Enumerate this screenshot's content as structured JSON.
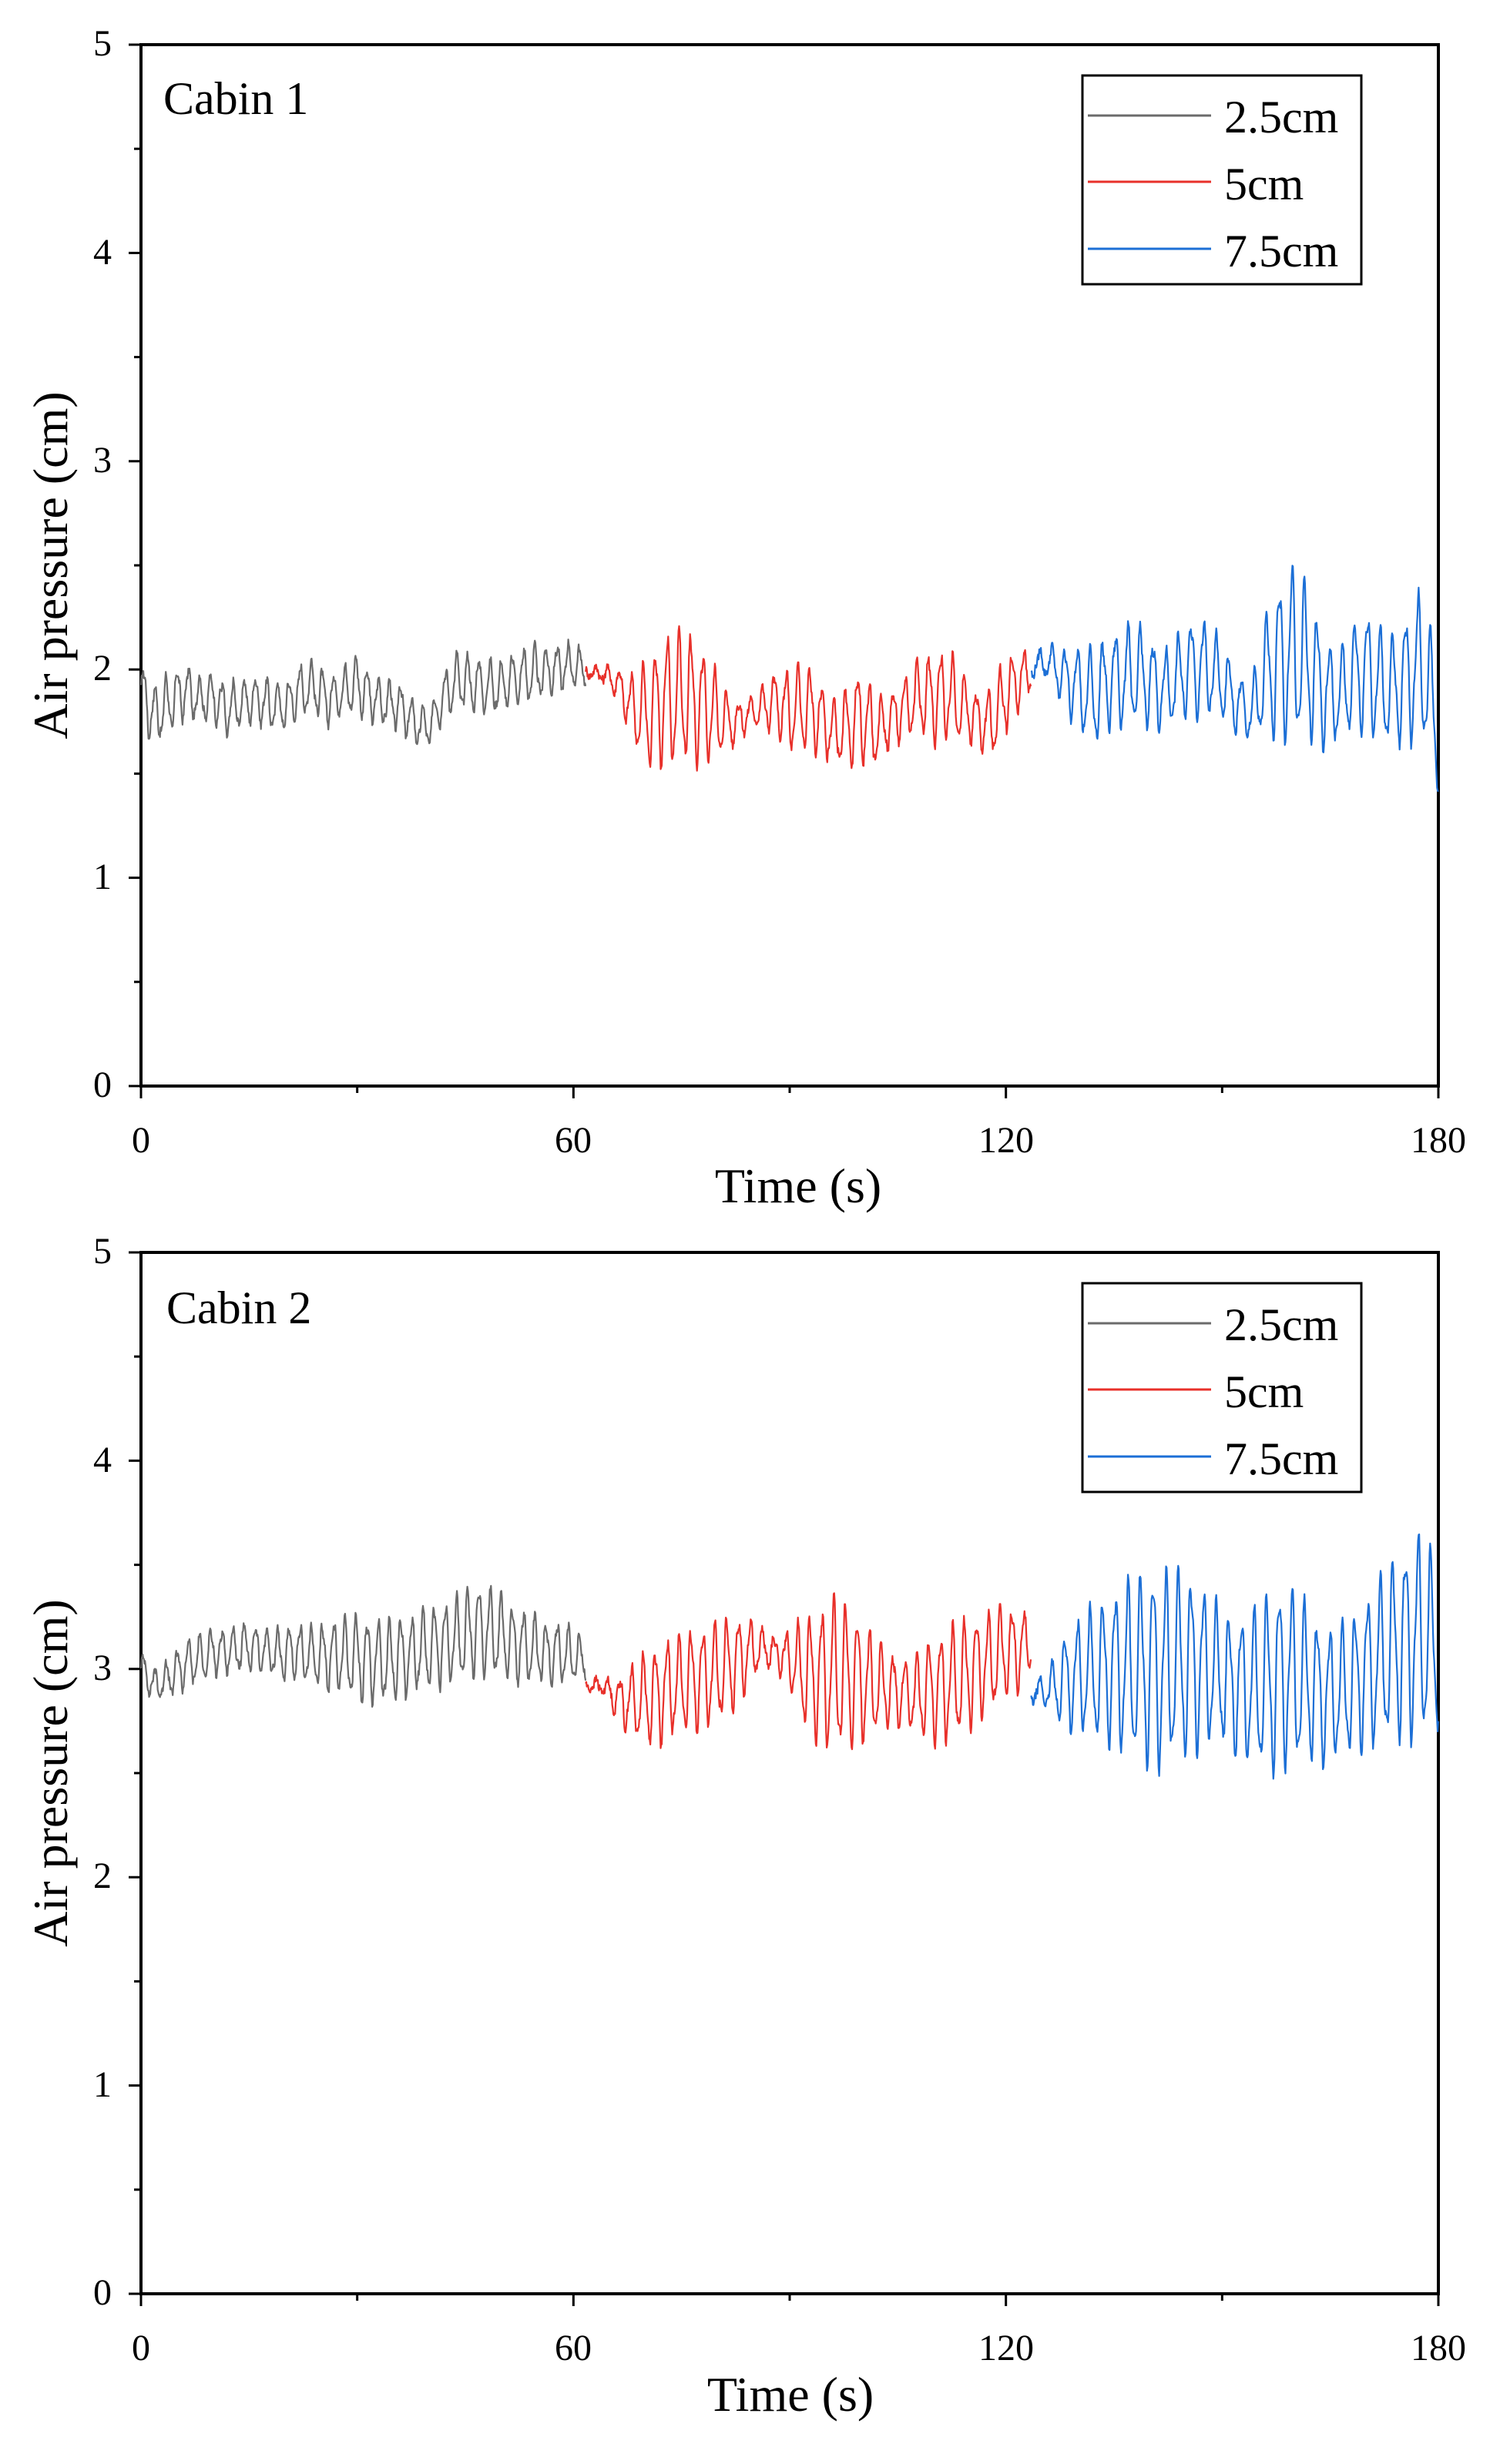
{
  "chart_data": [
    {
      "type": "line",
      "panel_label": "Cabin 1",
      "xlabel": "Time (s)",
      "ylabel": "Air pressure (cm)",
      "xlim": [
        0,
        180
      ],
      "ylim": [
        0,
        5
      ],
      "xticks": [
        0,
        60,
        120,
        180
      ],
      "yticks": [
        0,
        1,
        2,
        3,
        4,
        5
      ],
      "legend_position": "top-right",
      "series": [
        {
          "name": "2.5cm",
          "color": "#6b6b6b",
          "t_start": 0,
          "t_end": 61.7,
          "x": [
            0,
            2,
            4,
            6,
            8,
            10,
            12,
            14,
            16,
            18,
            20,
            22,
            24,
            26,
            28,
            30,
            32,
            34,
            36,
            38,
            40,
            42,
            44,
            46,
            48,
            50,
            52,
            54,
            56,
            58,
            60,
            61.7
          ],
          "mean": [
            1.88,
            1.78,
            1.84,
            1.9,
            1.86,
            1.87,
            1.8,
            1.84,
            1.86,
            1.83,
            1.82,
            1.9,
            1.92,
            1.85,
            1.9,
            1.93,
            1.86,
            1.84,
            1.82,
            1.74,
            1.72,
            1.88,
            1.95,
            1.93,
            1.92,
            1.92,
            1.96,
            1.98,
            1.99,
            2.01,
            2.02,
            2.0
          ],
          "amp": [
            0.18,
            0.15,
            0.16,
            0.14,
            0.12,
            0.12,
            0.14,
            0.12,
            0.12,
            0.13,
            0.12,
            0.13,
            0.14,
            0.12,
            0.12,
            0.16,
            0.12,
            0.12,
            0.13,
            0.11,
            0.1,
            0.12,
            0.15,
            0.15,
            0.14,
            0.13,
            0.14,
            0.15,
            0.12,
            0.12,
            0.12,
            0.08
          ]
        },
        {
          "name": "5cm",
          "color": "#e8302a",
          "t_start": 61.7,
          "t_end": 123.5,
          "x": [
            61.7,
            64,
            66,
            68,
            70,
            72,
            74,
            76,
            78,
            80,
            82,
            84,
            86,
            88,
            90,
            92,
            94,
            96,
            98,
            100,
            102,
            104,
            106,
            108,
            110,
            112,
            114,
            116,
            118,
            120,
            122,
            123.5
          ],
          "mean": [
            1.99,
            1.98,
            1.94,
            1.82,
            1.78,
            1.84,
            1.86,
            1.87,
            1.82,
            1.78,
            1.74,
            1.78,
            1.82,
            1.84,
            1.8,
            1.82,
            1.78,
            1.7,
            1.72,
            1.78,
            1.7,
            1.76,
            1.82,
            1.88,
            1.86,
            1.88,
            1.82,
            1.76,
            1.74,
            1.88,
            1.96,
            1.98
          ],
          "amp": [
            0.02,
            0.04,
            0.08,
            0.16,
            0.28,
            0.32,
            0.36,
            0.34,
            0.3,
            0.22,
            0.12,
            0.08,
            0.1,
            0.16,
            0.22,
            0.24,
            0.2,
            0.16,
            0.2,
            0.26,
            0.18,
            0.14,
            0.16,
            0.2,
            0.24,
            0.24,
            0.18,
            0.14,
            0.18,
            0.2,
            0.16,
            0.08
          ]
        },
        {
          "name": "7.5cm",
          "color": "#1c6fd6",
          "t_start": 123.5,
          "t_end": 180,
          "x": [
            123.5,
            126,
            128,
            130,
            132,
            134,
            136,
            138,
            140,
            142,
            144,
            146,
            148,
            150,
            152,
            154,
            156,
            158,
            160,
            162,
            164,
            166,
            168,
            170,
            172,
            174,
            176,
            178,
            180
          ],
          "mean": [
            2.02,
            2.04,
            1.96,
            1.92,
            1.86,
            1.94,
            1.96,
            1.98,
            1.94,
            1.9,
            1.96,
            2.02,
            2.0,
            1.94,
            1.84,
            1.78,
            1.98,
            2.04,
            2.08,
            2.02,
            1.9,
            1.86,
            1.96,
            2.0,
            1.92,
            1.9,
            1.98,
            2.02,
            1.68
          ],
          "amp": [
            0.06,
            0.08,
            0.16,
            0.22,
            0.26,
            0.24,
            0.26,
            0.28,
            0.24,
            0.2,
            0.22,
            0.26,
            0.24,
            0.2,
            0.16,
            0.14,
            0.3,
            0.42,
            0.46,
            0.4,
            0.3,
            0.22,
            0.28,
            0.32,
            0.3,
            0.28,
            0.36,
            0.42,
            0.3
          ]
        }
      ]
    },
    {
      "type": "line",
      "panel_label": "Cabin 2",
      "xlabel": "Time (s)",
      "ylabel": "Air pressure (cm)",
      "xlim": [
        0,
        180
      ],
      "ylim": [
        0,
        5
      ],
      "xticks": [
        0,
        60,
        120,
        180
      ],
      "yticks": [
        0,
        1,
        2,
        3,
        4,
        5
      ],
      "legend_position": "top-right",
      "series": [
        {
          "name": "2.5cm",
          "color": "#6b6b6b",
          "t_start": 0,
          "t_end": 61.7,
          "x": [
            0,
            2,
            4,
            6,
            8,
            10,
            12,
            14,
            16,
            18,
            20,
            22,
            24,
            26,
            28,
            30,
            32,
            34,
            36,
            38,
            40,
            42,
            44,
            46,
            48,
            50,
            52,
            54,
            56,
            58,
            60,
            61.7
          ],
          "mean": [
            3.0,
            2.92,
            2.96,
            3.02,
            3.05,
            3.08,
            3.09,
            3.1,
            3.1,
            3.08,
            3.07,
            3.08,
            3.06,
            3.06,
            3.07,
            3.05,
            3.04,
            3.04,
            3.05,
            3.08,
            3.1,
            3.12,
            3.15,
            3.18,
            3.18,
            3.16,
            3.12,
            3.1,
            3.08,
            3.08,
            3.06,
            3.04
          ],
          "amp": [
            0.1,
            0.08,
            0.1,
            0.12,
            0.12,
            0.12,
            0.12,
            0.12,
            0.12,
            0.12,
            0.14,
            0.14,
            0.16,
            0.18,
            0.2,
            0.22,
            0.22,
            0.22,
            0.22,
            0.2,
            0.22,
            0.22,
            0.22,
            0.24,
            0.24,
            0.22,
            0.2,
            0.18,
            0.16,
            0.16,
            0.14,
            0.08
          ]
        },
        {
          "name": "5cm",
          "color": "#e8302a",
          "t_start": 61.7,
          "t_end": 123.5,
          "x": [
            61.7,
            64,
            66,
            68,
            70,
            72,
            74,
            76,
            78,
            80,
            82,
            84,
            86,
            88,
            90,
            92,
            94,
            96,
            98,
            100,
            102,
            104,
            106,
            108,
            110,
            112,
            114,
            116,
            118,
            120,
            122,
            123.5
          ],
          "mean": [
            2.92,
            2.92,
            2.86,
            2.84,
            2.86,
            2.88,
            2.92,
            2.94,
            2.96,
            2.98,
            3.02,
            3.08,
            3.1,
            3.08,
            3.04,
            2.98,
            2.96,
            2.98,
            2.96,
            2.94,
            2.92,
            2.9,
            2.88,
            2.88,
            2.9,
            2.92,
            2.96,
            3.0,
            3.04,
            3.08,
            3.1,
            3.12
          ],
          "amp": [
            0.02,
            0.04,
            0.1,
            0.18,
            0.24,
            0.26,
            0.26,
            0.26,
            0.26,
            0.26,
            0.24,
            0.2,
            0.1,
            0.08,
            0.16,
            0.28,
            0.36,
            0.4,
            0.38,
            0.32,
            0.26,
            0.2,
            0.18,
            0.22,
            0.28,
            0.3,
            0.3,
            0.28,
            0.26,
            0.24,
            0.22,
            0.12
          ]
        },
        {
          "name": "7.5cm",
          "color": "#1c6fd6",
          "t_start": 123.5,
          "t_end": 180,
          "x": [
            123.5,
            126,
            128,
            130,
            132,
            134,
            136,
            138,
            140,
            142,
            144,
            146,
            148,
            150,
            152,
            154,
            156,
            158,
            160,
            162,
            164,
            166,
            168,
            170,
            172,
            174,
            176,
            178,
            180
          ],
          "mean": [
            2.88,
            2.9,
            2.94,
            2.96,
            2.98,
            3.0,
            3.0,
            3.0,
            3.0,
            3.0,
            3.02,
            3.02,
            3.0,
            2.96,
            2.92,
            2.9,
            2.92,
            2.96,
            2.96,
            2.92,
            2.88,
            2.88,
            2.92,
            2.98,
            3.04,
            3.1,
            3.14,
            3.16,
            3.08
          ],
          "amp": [
            0.04,
            0.1,
            0.24,
            0.3,
            0.34,
            0.38,
            0.44,
            0.48,
            0.52,
            0.52,
            0.5,
            0.46,
            0.4,
            0.34,
            0.36,
            0.4,
            0.46,
            0.48,
            0.46,
            0.4,
            0.36,
            0.34,
            0.36,
            0.4,
            0.44,
            0.48,
            0.52,
            0.56,
            0.4
          ]
        }
      ]
    }
  ]
}
